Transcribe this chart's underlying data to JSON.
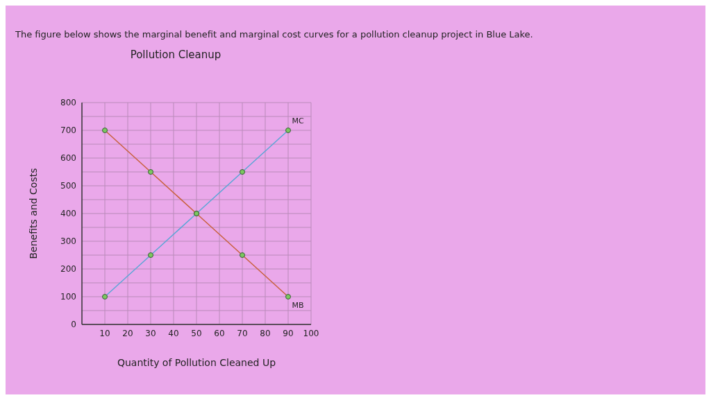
{
  "chart_data": {
    "type": "line",
    "title": "Pollution Cleanup",
    "annotations": [
      "The figure below shows the marginal benefit and marginal cost curves for a pollution cleanup project in Blue Lake."
    ],
    "xlabel": "Quantity of Pollution Cleaned Up",
    "ylabel": "Benefits and Costs",
    "x": [
      10,
      30,
      50,
      70,
      90
    ],
    "series": [
      {
        "name": "MB",
        "color": "#c8603c",
        "values": [
          700,
          550,
          400,
          250,
          100
        ]
      },
      {
        "name": "MC",
        "color": "#5aa6d6",
        "values": [
          100,
          250,
          400,
          550,
          700
        ]
      }
    ],
    "xlim": [
      0,
      100
    ],
    "xticks": [
      10,
      20,
      30,
      40,
      50,
      60,
      70,
      80,
      90,
      100
    ],
    "ylim": [
      0,
      800
    ],
    "yticks": [
      0,
      {
        "value": 50,
        "label": null
      },
      100,
      {
        "value": 150,
        "label": null
      },
      200,
      {
        "value": 250,
        "label": null
      },
      300,
      {
        "value": 350,
        "label": null
      },
      400,
      {
        "value": 450,
        "label": null
      },
      500,
      {
        "value": 550,
        "label": null
      },
      600,
      {
        "value": 650,
        "label": null
      },
      700,
      {
        "value": 750,
        "label": null
      },
      800
    ],
    "grid": true,
    "legend": false,
    "marker": "circle",
    "line_style": "solid"
  }
}
